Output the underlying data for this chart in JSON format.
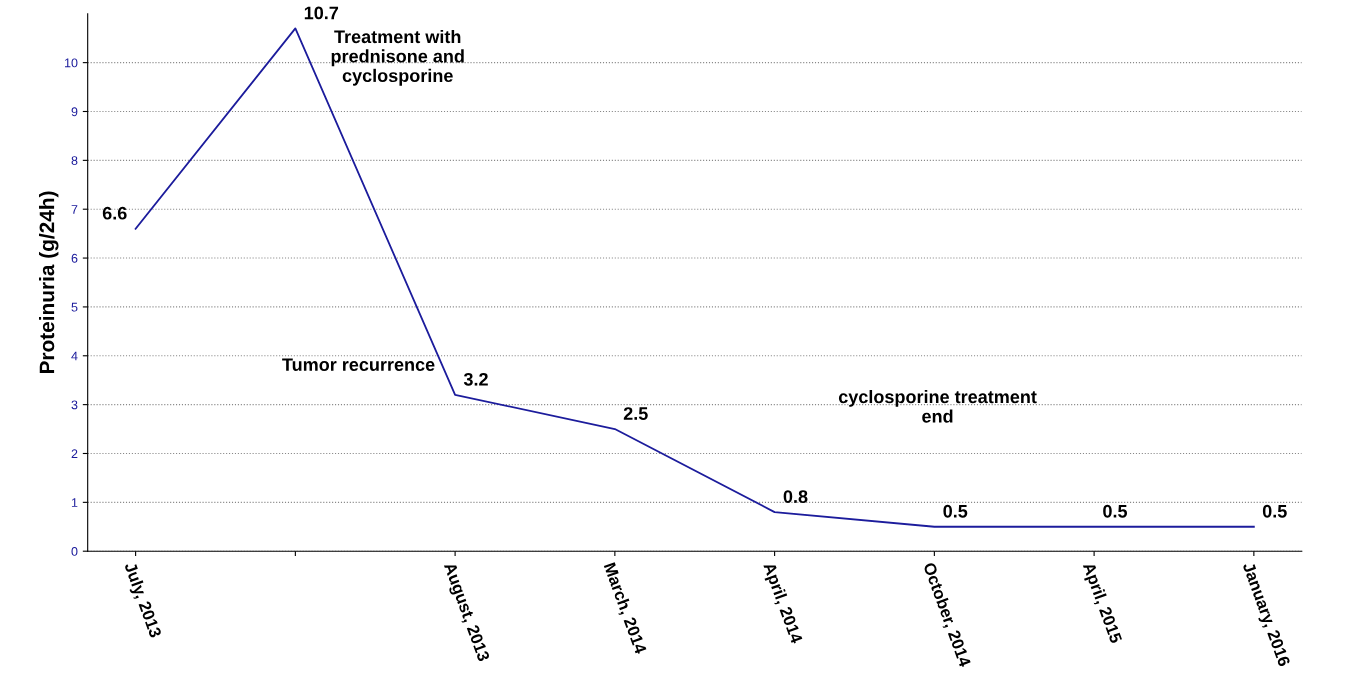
{
  "chart_data": {
    "type": "line",
    "ylabel": "Proteinuria (g/24h)",
    "categories": [
      "July, 2013",
      null,
      "August, 2013",
      "March, 2014",
      "April, 2014",
      "October, 2014",
      "April, 2015",
      "January, 2016"
    ],
    "series": [
      {
        "color": "#1c1c9c",
        "values": [
          6.6,
          10.7,
          3.2,
          2.5,
          0.8,
          0.5,
          0.5,
          0.5
        ]
      }
    ],
    "data_labels": true,
    "ylim": [
      0,
      11
    ],
    "yticks": [
      0,
      1,
      2,
      3,
      4,
      5,
      6,
      7,
      8,
      9,
      10
    ],
    "grid": "y",
    "marker": "none",
    "line_style": "solid",
    "annotations": [
      "Treatment with\nprednisone and\ncyclosporine",
      "Tumor recurrence",
      "cyclosporine treatment\nend"
    ]
  }
}
